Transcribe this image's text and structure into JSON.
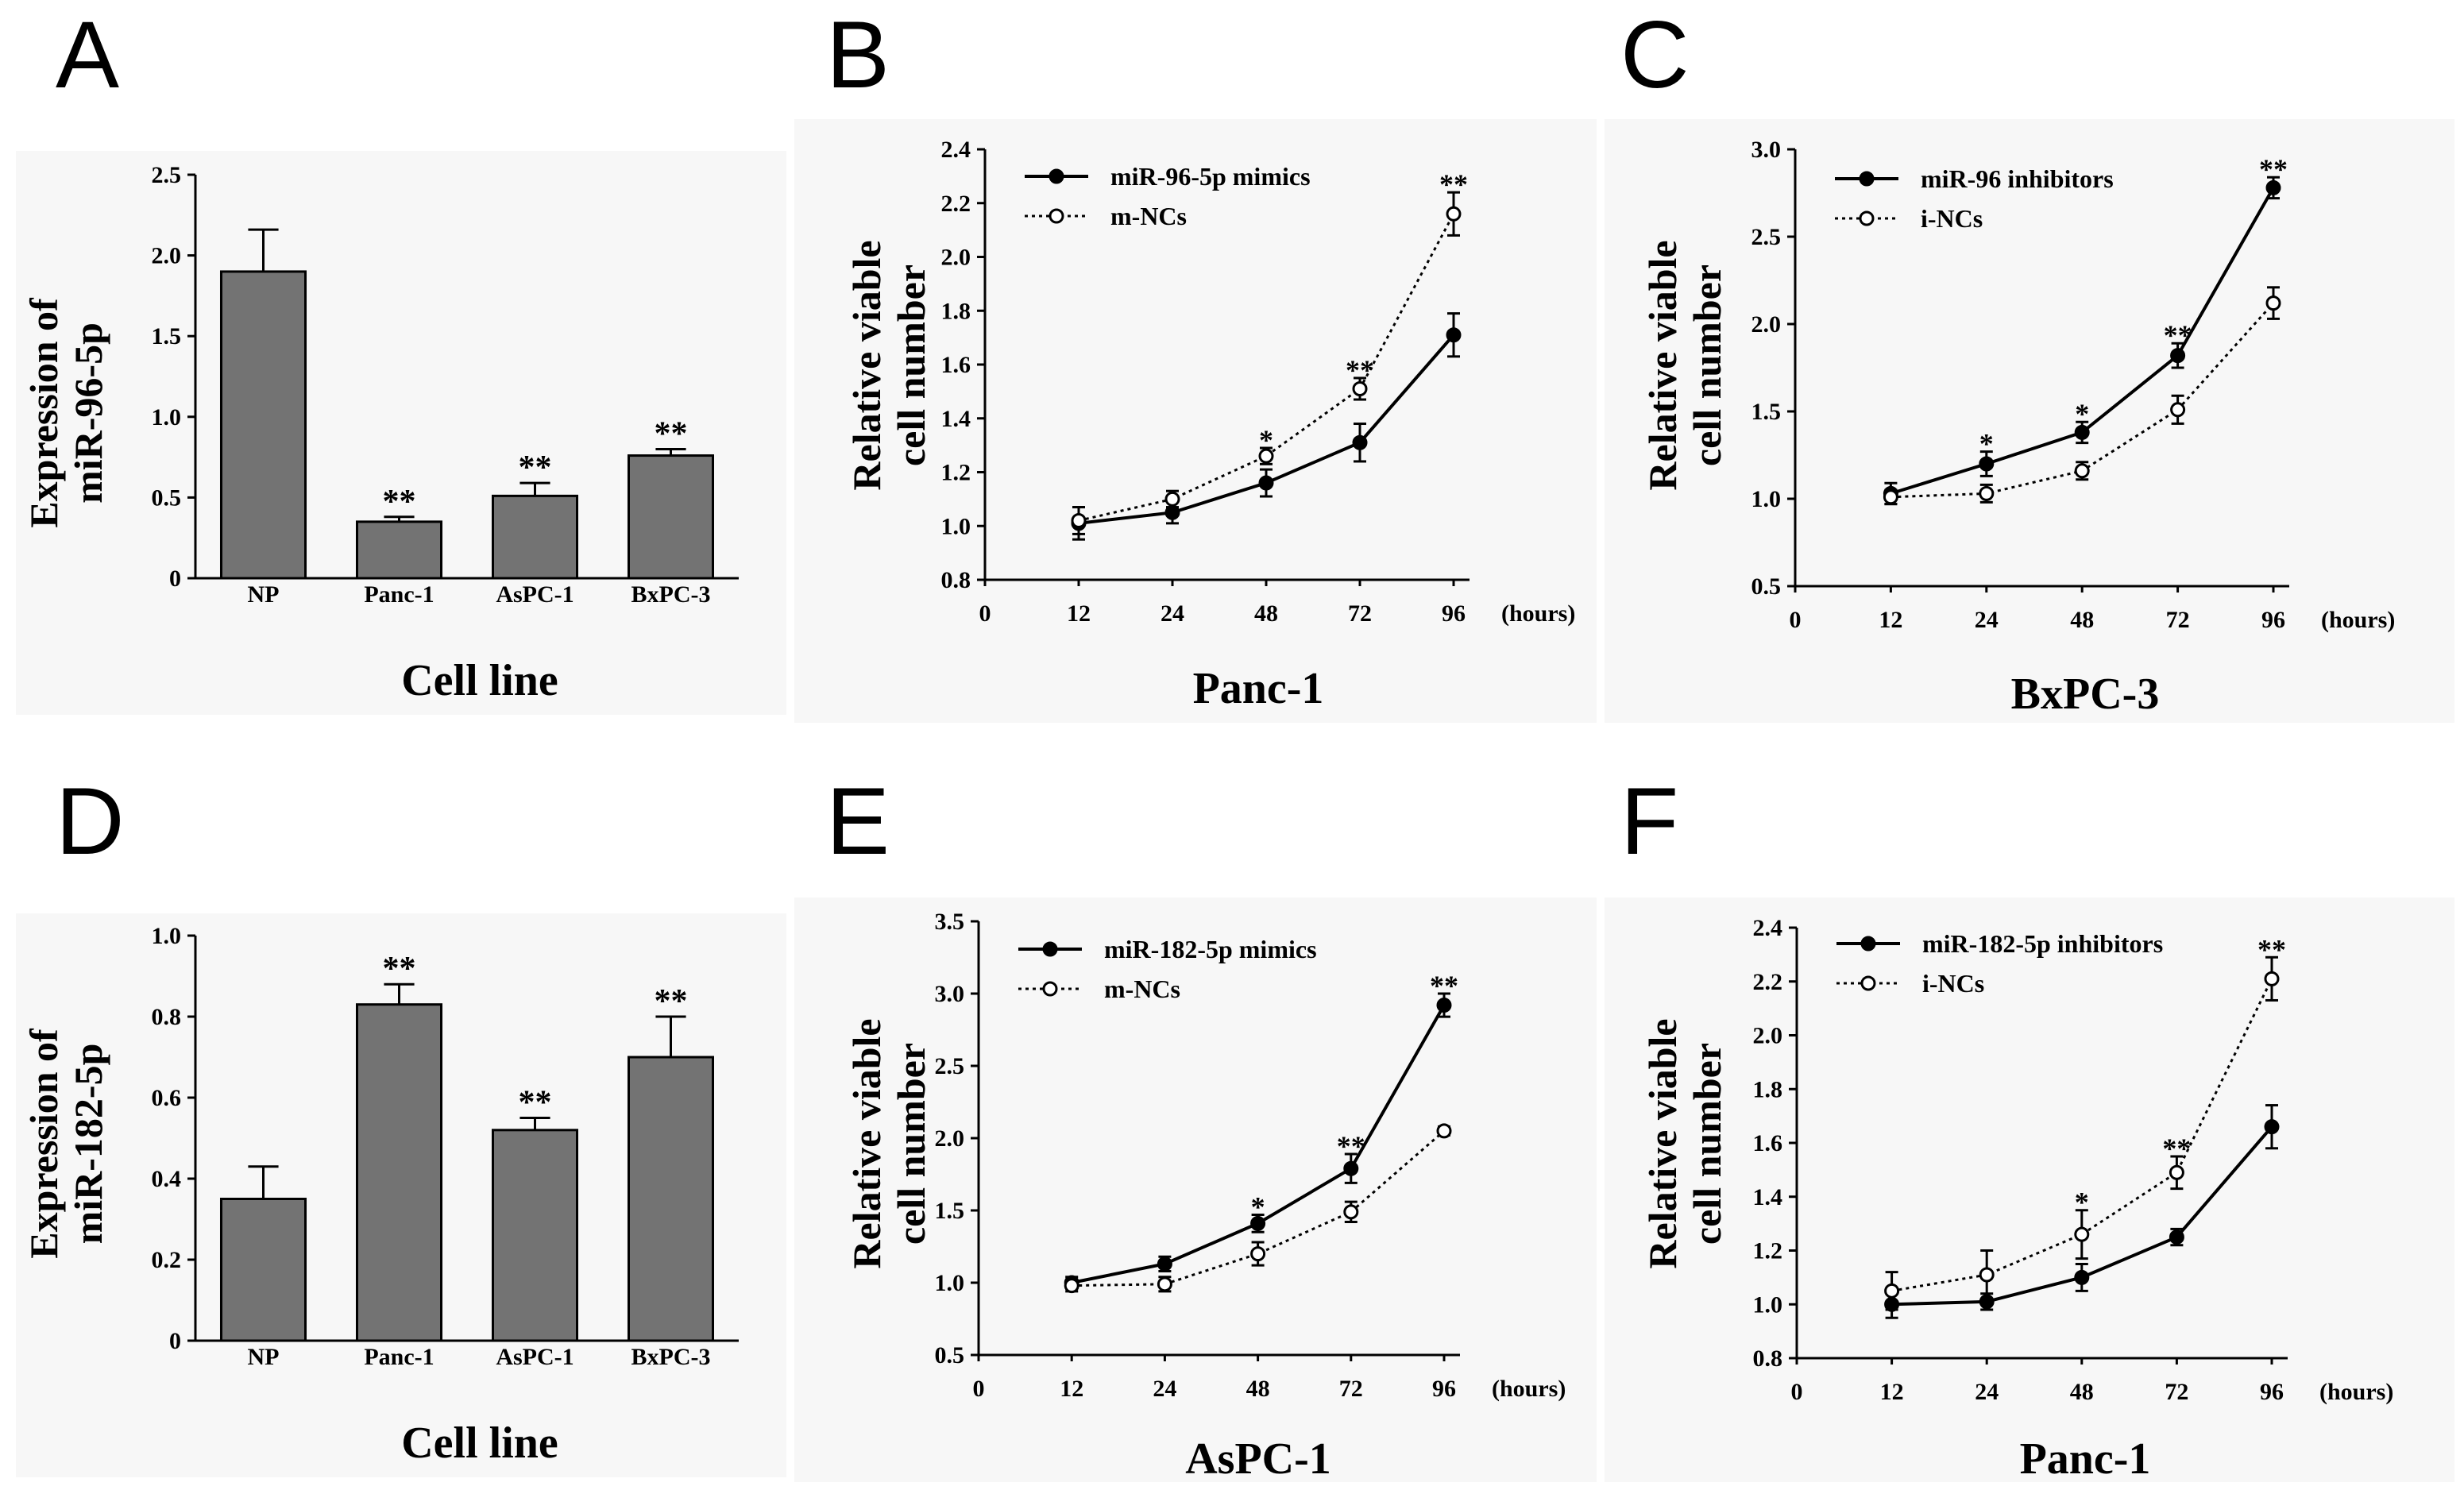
{
  "chart_data": [
    {
      "panel": "A",
      "type": "bar",
      "categories": [
        "NP",
        "Panc-1",
        "AsPC-1",
        "BxPC-3"
      ],
      "values": [
        1.9,
        0.35,
        0.51,
        0.76
      ],
      "errors": [
        0.26,
        0.03,
        0.08,
        0.04
      ],
      "significance": [
        "",
        "**",
        "**",
        "**"
      ],
      "ylabel_lines": [
        "Expression of",
        "miR-96-5p"
      ],
      "xlabel": "Cell line",
      "ylim": [
        0,
        2.5
      ],
      "yticks": [
        "0",
        "0.5",
        "1.0",
        "1.5",
        "2.0",
        "2.5"
      ]
    },
    {
      "panel": "B",
      "type": "line",
      "x": [
        12,
        24,
        48,
        72,
        96
      ],
      "xticks": [
        "0",
        "12",
        "24",
        "48",
        "72",
        "96"
      ],
      "x_unit": "(hours)",
      "series": [
        {
          "name": "miR-96-5p mimics",
          "style": "solid-filled",
          "values": [
            1.01,
            1.05,
            1.16,
            1.31,
            1.71
          ],
          "errors": [
            0.06,
            0.04,
            0.05,
            0.07,
            0.08
          ]
        },
        {
          "name": "m-NCs",
          "style": "dotted-open",
          "values": [
            1.02,
            1.1,
            1.26,
            1.51,
            2.16
          ],
          "errors": [
            0.05,
            0.03,
            0.03,
            0.04,
            0.08
          ]
        }
      ],
      "significance": [
        "",
        "",
        "*",
        "**",
        "**"
      ],
      "ylabel_lines": [
        "Relative viable",
        "cell number"
      ],
      "xlabel": "Panc-1",
      "ylim": [
        0.8,
        2.4
      ],
      "yticks": [
        "0.8",
        "1.0",
        "1.2",
        "1.4",
        "1.6",
        "1.8",
        "2.0",
        "2.2",
        "2.4"
      ]
    },
    {
      "panel": "C",
      "type": "line",
      "x": [
        12,
        24,
        48,
        72,
        96
      ],
      "xticks": [
        "0",
        "12",
        "24",
        "48",
        "72",
        "96"
      ],
      "x_unit": "(hours)",
      "series": [
        {
          "name": "miR-96 inhibitors",
          "style": "solid-filled",
          "values": [
            1.03,
            1.2,
            1.38,
            1.82,
            2.78
          ],
          "errors": [
            0.06,
            0.07,
            0.06,
            0.07,
            0.06
          ]
        },
        {
          "name": "i-NCs",
          "style": "dotted-open",
          "values": [
            1.01,
            1.03,
            1.16,
            1.51,
            2.12
          ],
          "errors": [
            0.04,
            0.05,
            0.05,
            0.08,
            0.09
          ]
        }
      ],
      "significance": [
        "",
        "*",
        "*",
        "**",
        "**"
      ],
      "ylabel_lines": [
        "Relative viable",
        "cell number"
      ],
      "xlabel": "BxPC-3",
      "ylim": [
        0.5,
        3.0
      ],
      "yticks": [
        "0.5",
        "1.0",
        "1.5",
        "2.0",
        "2.5",
        "3.0"
      ]
    },
    {
      "panel": "D",
      "type": "bar",
      "categories": [
        "NP",
        "Panc-1",
        "AsPC-1",
        "BxPC-3"
      ],
      "values": [
        0.35,
        0.83,
        0.52,
        0.7
      ],
      "errors": [
        0.08,
        0.05,
        0.03,
        0.1
      ],
      "significance": [
        "",
        "**",
        "**",
        "**"
      ],
      "ylabel_lines": [
        "Expression of",
        "miR-182-5p"
      ],
      "xlabel": "Cell line",
      "ylim": [
        0,
        1.0
      ],
      "yticks": [
        "0",
        "0.2",
        "0.4",
        "0.6",
        "0.8",
        "1.0"
      ]
    },
    {
      "panel": "E",
      "type": "line",
      "x": [
        12,
        24,
        48,
        72,
        96
      ],
      "xticks": [
        "0",
        "12",
        "24",
        "48",
        "72",
        "96"
      ],
      "x_unit": "(hours)",
      "series": [
        {
          "name": "miR-182-5p mimics",
          "style": "solid-filled",
          "values": [
            1.0,
            1.13,
            1.41,
            1.79,
            2.92
          ],
          "errors": [
            0.04,
            0.05,
            0.06,
            0.1,
            0.08
          ]
        },
        {
          "name": "m-NCs",
          "style": "dotted-open",
          "values": [
            0.98,
            0.99,
            1.2,
            1.49,
            2.05
          ],
          "errors": [
            0.04,
            0.05,
            0.08,
            0.07,
            0.03
          ]
        }
      ],
      "significance": [
        "",
        "",
        "*",
        "**",
        "**"
      ],
      "ylabel_lines": [
        "Relative viable",
        "cell number"
      ],
      "xlabel": "AsPC-1",
      "ylim": [
        0.5,
        3.5
      ],
      "yticks": [
        "0.5",
        "1.0",
        "1.5",
        "2.0",
        "2.5",
        "3.0",
        "3.5"
      ]
    },
    {
      "panel": "F",
      "type": "line",
      "x": [
        12,
        24,
        48,
        72,
        96
      ],
      "xticks": [
        "0",
        "12",
        "24",
        "48",
        "72",
        "96"
      ],
      "x_unit": "(hours)",
      "series": [
        {
          "name": "miR-182-5p inhibitors",
          "style": "solid-filled",
          "values": [
            1.0,
            1.01,
            1.1,
            1.25,
            1.66
          ],
          "errors": [
            0.05,
            0.03,
            0.05,
            0.03,
            0.08
          ]
        },
        {
          "name": "i-NCs",
          "style": "dotted-open",
          "values": [
            1.05,
            1.11,
            1.26,
            1.49,
            2.21
          ],
          "errors": [
            0.07,
            0.09,
            0.09,
            0.06,
            0.08
          ]
        }
      ],
      "significance": [
        "",
        "",
        "*",
        "**",
        "**"
      ],
      "ylabel_lines": [
        "Relative viable",
        "cell number"
      ],
      "xlabel": "Panc-1",
      "ylim": [
        0.8,
        2.4
      ],
      "yticks": [
        "0.8",
        "1.0",
        "1.2",
        "1.4",
        "1.6",
        "1.8",
        "2.0",
        "2.2",
        "2.4"
      ]
    }
  ]
}
